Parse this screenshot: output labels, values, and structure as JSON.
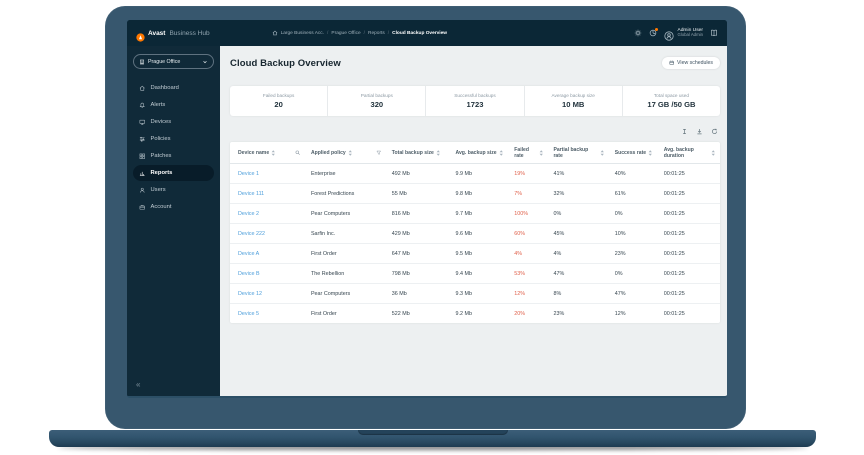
{
  "topbar": {
    "brand_bold": "Avast",
    "brand_rest": "Business Hub",
    "breadcrumb": [
      "Large Business Acc.",
      "Prague Office",
      "Reports",
      "Cloud Backup Overview"
    ],
    "user_name": "Admin User",
    "user_role": "Global Admin",
    "icons": [
      "gear-icon",
      "notifications-icon",
      "avatar",
      "book-icon"
    ]
  },
  "sidebar": {
    "org_selector": "Prague Office",
    "items": [
      {
        "label": "Dashboard",
        "icon": "home",
        "active": false
      },
      {
        "label": "Alerts",
        "icon": "bell",
        "active": false
      },
      {
        "label": "Devices",
        "icon": "monitor",
        "active": false
      },
      {
        "label": "Policies",
        "icon": "sliders",
        "active": false
      },
      {
        "label": "Patches",
        "icon": "grid",
        "active": false
      },
      {
        "label": "Reports",
        "icon": "chart",
        "active": true
      },
      {
        "label": "Users",
        "icon": "user",
        "active": false
      },
      {
        "label": "Account",
        "icon": "briefcase",
        "active": false
      }
    ],
    "collapse_glyph": "«"
  },
  "main": {
    "title": "Cloud Backup Overview",
    "view_schedules_label": "View schedules",
    "stats": [
      {
        "label": "Failed backups",
        "value": "20"
      },
      {
        "label": "Partial backups",
        "value": "320"
      },
      {
        "label": "Successful backups",
        "value": "1723"
      },
      {
        "label": "Average backup size",
        "value": "10 MB"
      },
      {
        "label": "Total space used",
        "value": "17 GB /50 GB"
      }
    ],
    "table": {
      "columns": [
        "Device name",
        "Applied policy",
        "Total backup size",
        "Avg. backup size",
        "Failed rate",
        "Partial backup rate",
        "Success rate",
        "Avg. backup duration"
      ],
      "rows": [
        {
          "device": "Device 1",
          "policy": "Enterprise",
          "total": "492 Mb",
          "avg": "9.9 Mb",
          "failed": "19%",
          "partial": "41%",
          "success": "40%",
          "duration": "00:01:25"
        },
        {
          "device": "Device 111",
          "policy": "Forest Predictions",
          "total": "55 Mb",
          "avg": "9.8 Mb",
          "failed": "7%",
          "partial": "32%",
          "success": "61%",
          "duration": "00:01:25"
        },
        {
          "device": "Device 2",
          "policy": "Pear Computers",
          "total": "816 Mb",
          "avg": "9.7 Mb",
          "failed": "100%",
          "partial": "0%",
          "success": "0%",
          "duration": "00:01:25"
        },
        {
          "device": "Device 222",
          "policy": "Sarfin Inc.",
          "total": "429 Mb",
          "avg": "9.6 Mb",
          "failed": "60%",
          "partial": "45%",
          "success": "10%",
          "duration": "00:01:25"
        },
        {
          "device": "Device A",
          "policy": "First Order",
          "total": "647 Mb",
          "avg": "9.5 Mb",
          "failed": "4%",
          "partial": "4%",
          "success": "23%",
          "duration": "00:01:25"
        },
        {
          "device": "Device B",
          "policy": "The Rebellion",
          "total": "798 Mb",
          "avg": "9.4 Mb",
          "failed": "53%",
          "partial": "47%",
          "success": "0%",
          "duration": "00:01:25"
        },
        {
          "device": "Device 12",
          "policy": "Pear Computers",
          "total": "36 Mb",
          "avg": "9.3 Mb",
          "failed": "12%",
          "partial": "8%",
          "success": "47%",
          "duration": "00:01:25"
        },
        {
          "device": "Device 5",
          "policy": "First Order",
          "total": "522 Mb",
          "avg": "9.2 Mb",
          "failed": "20%",
          "partial": "23%",
          "success": "12%",
          "duration": "00:01:25"
        }
      ]
    }
  },
  "colors": {
    "accent_orange": "#ff7800",
    "link_blue": "#4d9edb",
    "failed_red": "#e0604a",
    "topbar_bg": "#0b2736",
    "sidebar_bg": "#102a39",
    "main_bg": "#edf0f1"
  }
}
